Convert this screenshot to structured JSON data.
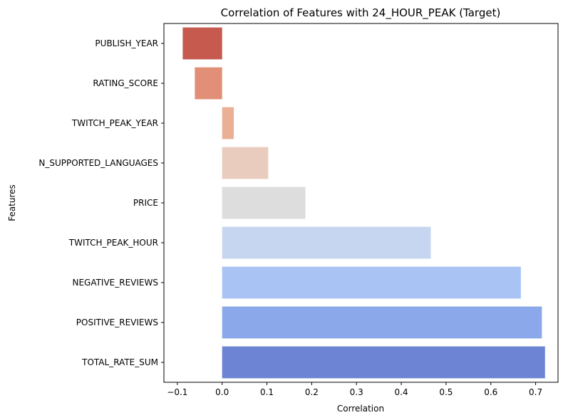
{
  "chart_data": {
    "type": "bar",
    "orientation": "horizontal",
    "title": "Correlation of Features with 24_HOUR_PEAK (Target)",
    "xlabel": "Correlation",
    "ylabel": "Features",
    "xlim": [
      -0.13,
      0.75
    ],
    "xticks": [
      -0.1,
      0.0,
      0.1,
      0.2,
      0.3,
      0.4,
      0.5,
      0.6,
      0.7
    ],
    "xtick_labels": [
      "−0.1",
      "0.0",
      "0.1",
      "0.2",
      "0.3",
      "0.4",
      "0.5",
      "0.6",
      "0.7"
    ],
    "grid": false,
    "categories": [
      "PUBLISH_YEAR",
      "RATING_SCORE",
      "TWITCH_PEAK_YEAR",
      "N_SUPPORTED_LANGUAGES",
      "PRICE",
      "TWITCH_PEAK_HOUR",
      "NEGATIVE_REVIEWS",
      "POSITIVE_REVIEWS",
      "TOTAL_RATE_SUM"
    ],
    "values": [
      -0.088,
      -0.061,
      0.026,
      0.103,
      0.186,
      0.466,
      0.667,
      0.714,
      0.721
    ],
    "colors": [
      "#c65a4f",
      "#e28f77",
      "#ebaf96",
      "#eaccbf",
      "#dcdddc",
      "#c7d6f0",
      "#a9c3f5",
      "#8aa8ea",
      "#6c84d3"
    ]
  }
}
